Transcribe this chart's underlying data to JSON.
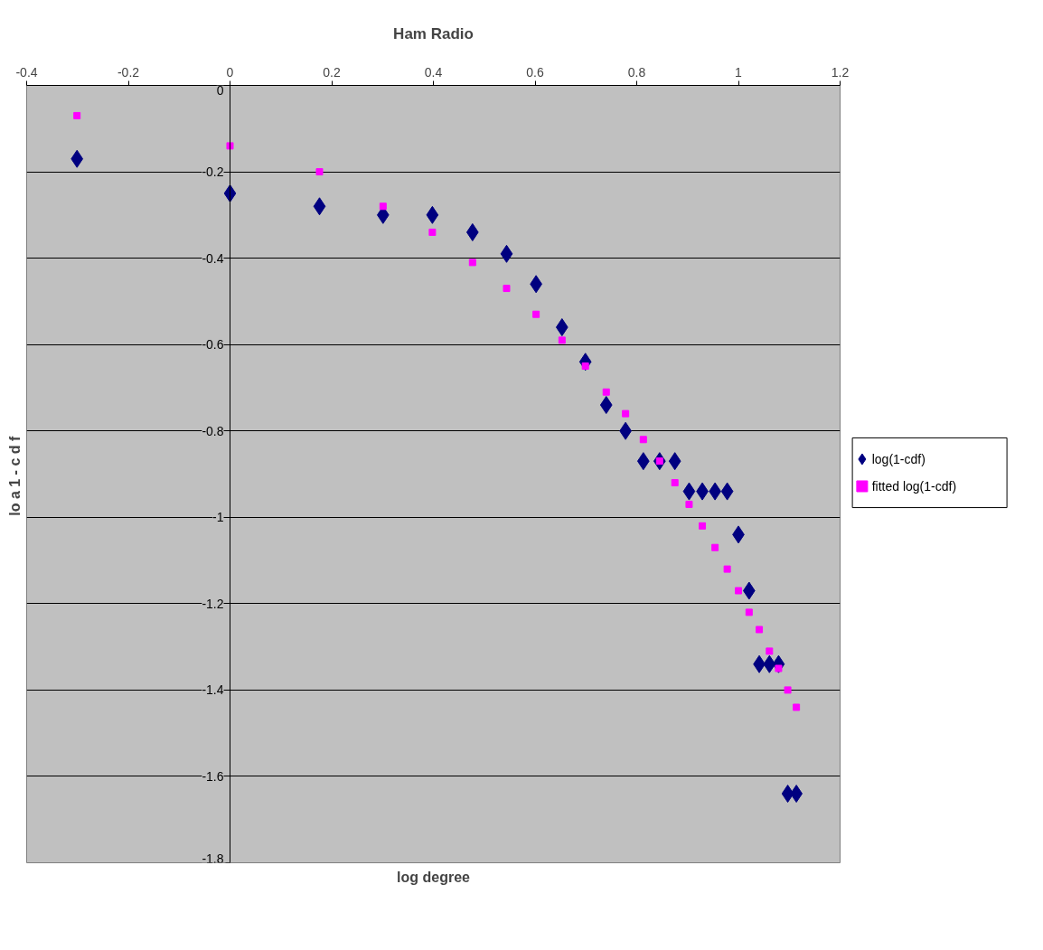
{
  "chart_data": {
    "type": "scatter",
    "title": "Ham Radio",
    "xlabel": "log degree",
    "ylabel": "lo a  1 - c d f",
    "x": [
      -0.301,
      0,
      0.176,
      0.301,
      0.398,
      0.477,
      0.544,
      0.602,
      0.653,
      0.699,
      0.74,
      0.778,
      0.813,
      0.845,
      0.875,
      0.903,
      0.929,
      0.954,
      0.978,
      1,
      1.021,
      1.041,
      1.061,
      1.079,
      1.097,
      1.114
    ],
    "series": [
      {
        "name": "log(1-cdf)",
        "color": "#000080",
        "marker": "diamond",
        "values": [
          -0.17,
          -0.25,
          -0.28,
          -0.3,
          -0.3,
          -0.34,
          -0.39,
          -0.46,
          -0.56,
          -0.64,
          -0.74,
          -0.8,
          -0.87,
          -0.87,
          -0.87,
          -0.94,
          -0.94,
          -0.94,
          -0.94,
          -1.04,
          -1.17,
          -1.34,
          -1.34,
          -1.34,
          -1.64,
          -1.64
        ]
      },
      {
        "name": "fitted log(1-cdf)",
        "color": "#ff00ff",
        "marker": "square",
        "values": [
          -0.07,
          -0.14,
          -0.2,
          -0.28,
          -0.34,
          -0.41,
          -0.47,
          -0.53,
          -0.59,
          -0.65,
          -0.71,
          -0.76,
          -0.82,
          -0.87,
          -0.92,
          -0.97,
          -1.02,
          -1.07,
          -1.12,
          -1.17,
          -1.22,
          -1.26,
          -1.31,
          -1.35,
          -1.4,
          -1.44
        ]
      }
    ],
    "xlim": [
      -0.4,
      1.2
    ],
    "xticks": [
      -0.4,
      -0.2,
      0,
      0.2,
      0.4,
      0.6,
      0.8,
      1,
      1.2
    ],
    "ylim": [
      -1.8,
      0
    ],
    "yticks": [
      0,
      -0.2,
      -0.4,
      -0.6,
      -0.8,
      -1,
      -1.2,
      -1.4,
      -1.6,
      -1.8
    ],
    "grid": "y",
    "legend": "right"
  }
}
